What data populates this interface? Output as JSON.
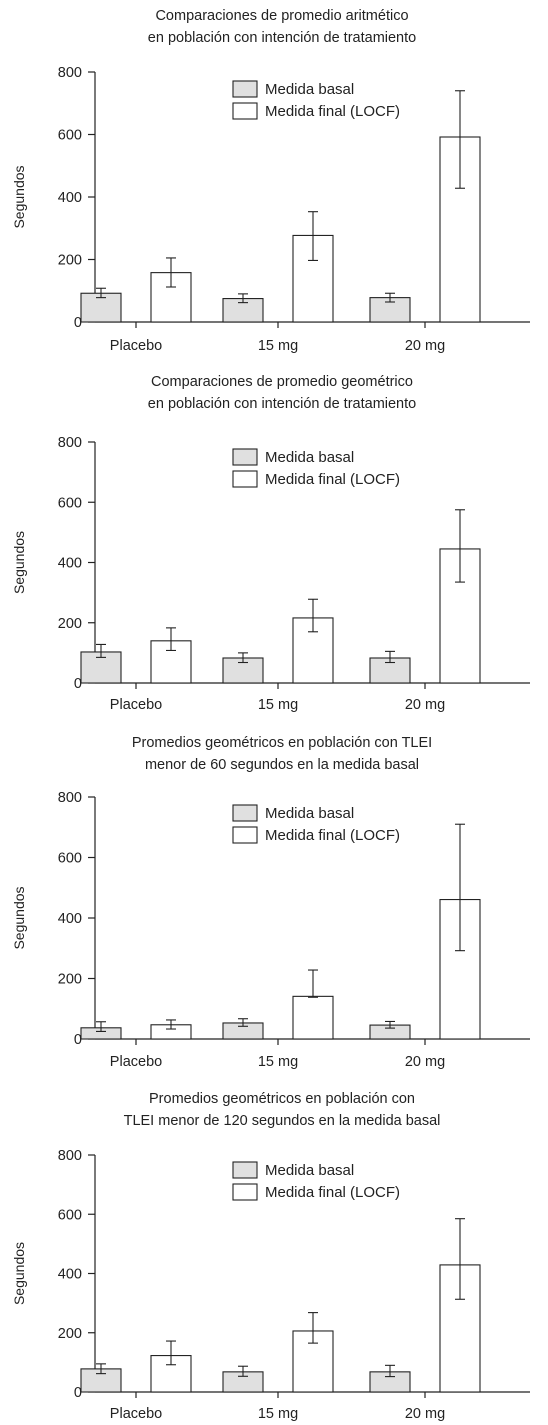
{
  "chart_data": [
    {
      "type": "bar",
      "title": "Comparaciones de promedio aritmético",
      "subtitle": "en población con intención de tratamiento",
      "ylabel": "Segundos",
      "ylim": [
        0,
        800
      ],
      "yticks": [
        "0",
        "200",
        "400",
        "600",
        "800"
      ],
      "categories": [
        "Placebo",
        "15 mg",
        "20 mg"
      ],
      "series": [
        {
          "name": "Medida basal",
          "color": "#e0e0e0",
          "values": [
            92,
            75,
            78
          ],
          "err_low": [
            78,
            62,
            64
          ],
          "err_high": [
            108,
            90,
            92
          ]
        },
        {
          "name": "Medida final (LOCF)",
          "color": "#ffffff",
          "values": [
            158,
            277,
            592
          ],
          "err_low": [
            112,
            197,
            428
          ],
          "err_high": [
            205,
            353,
            740
          ]
        }
      ],
      "legend": "top-center"
    },
    {
      "type": "bar",
      "title": "Comparaciones de promedio geométrico",
      "subtitle": "en población con intención de tratamiento",
      "ylabel": "Segundos",
      "ylim": [
        0,
        800
      ],
      "yticks": [
        "0",
        "200",
        "400",
        "600",
        "800"
      ],
      "categories": [
        "Placebo",
        "15 mg",
        "20 mg"
      ],
      "series": [
        {
          "name": "Medida basal",
          "color": "#e0e0e0",
          "values": [
            103,
            83,
            83
          ],
          "err_low": [
            85,
            68,
            68
          ],
          "err_high": [
            128,
            100,
            105
          ]
        },
        {
          "name": "Medida final (LOCF)",
          "color": "#ffffff",
          "values": [
            140,
            216,
            445
          ],
          "err_low": [
            108,
            170,
            335
          ],
          "err_high": [
            183,
            278,
            575
          ]
        }
      ],
      "legend": "top-center"
    },
    {
      "type": "bar",
      "title": "Promedios geométricos en población con TLEI",
      "subtitle": "menor de 60 segundos en la medida basal",
      "ylabel": "Segundos",
      "ylim": [
        0,
        800
      ],
      "yticks": [
        "0",
        "200",
        "400",
        "600",
        "800"
      ],
      "categories": [
        "Placebo",
        "15 mg",
        "20 mg"
      ],
      "series": [
        {
          "name": "Medida basal",
          "color": "#e0e0e0",
          "values": [
            37,
            53,
            46
          ],
          "err_low": [
            25,
            42,
            36
          ],
          "err_high": [
            57,
            67,
            58
          ]
        },
        {
          "name": "Medida final (LOCF)",
          "color": "#ffffff",
          "values": [
            47,
            141,
            461
          ],
          "err_low": [
            33,
            138,
            292
          ],
          "err_high": [
            63,
            228,
            710
          ]
        }
      ],
      "legend": "top-center"
    },
    {
      "type": "bar",
      "title": "Promedios geométricos en población con",
      "subtitle": "TLEI menor de 120 segundos en la medida basal",
      "ylabel": "Segundos",
      "ylim": [
        0,
        800
      ],
      "yticks": [
        "0",
        "200",
        "400",
        "600",
        "800"
      ],
      "categories": [
        "Placebo",
        "15 mg",
        "20 mg"
      ],
      "series": [
        {
          "name": "Medida basal",
          "color": "#e0e0e0",
          "values": [
            78,
            68,
            68
          ],
          "err_low": [
            62,
            53,
            52
          ],
          "err_high": [
            95,
            87,
            90
          ]
        },
        {
          "name": "Medida final (LOCF)",
          "color": "#ffffff",
          "values": [
            123,
            206,
            429
          ],
          "err_low": [
            92,
            165,
            313
          ],
          "err_high": [
            172,
            268,
            585
          ]
        }
      ],
      "legend": "top-center"
    }
  ]
}
